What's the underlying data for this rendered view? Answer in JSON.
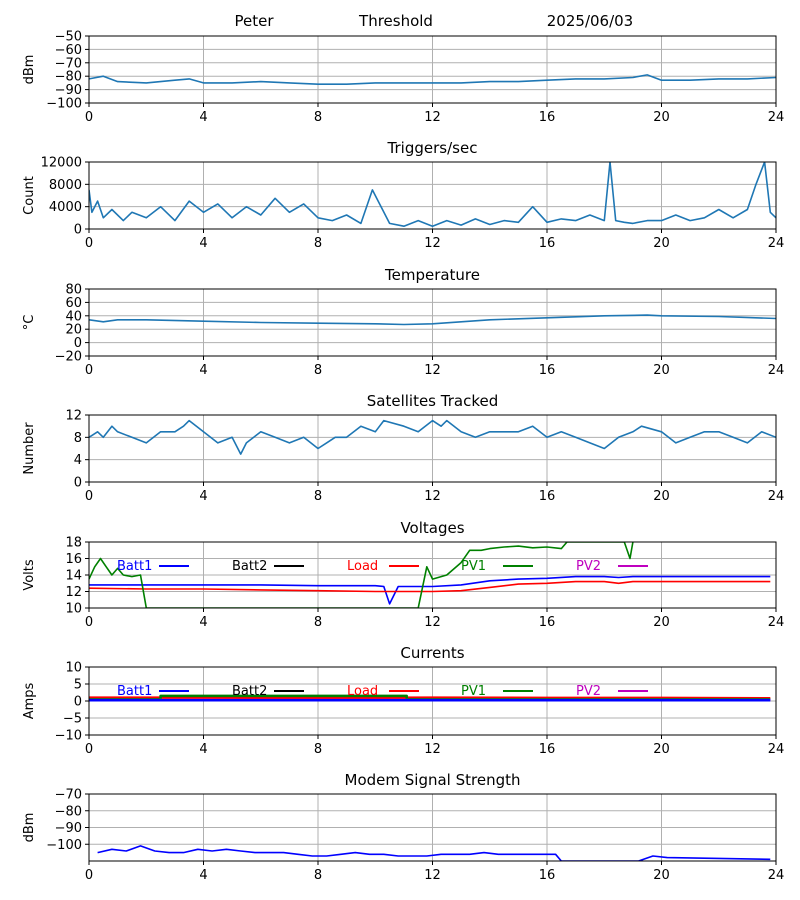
{
  "header": {
    "station": "Peter",
    "mode": "Threshold",
    "date": "2025/06/03"
  },
  "colors": {
    "default": "#1f77b4",
    "grid": "#b0b0b0",
    "batt1": "#0000ff",
    "batt2": "#000000",
    "load": "#ff0000",
    "pv1": "#008000",
    "pv2": "#bf00bf"
  },
  "chart_data": [
    {
      "type": "line",
      "title": "",
      "xlabel": "",
      "ylabel": "dBm",
      "xlim": [
        0,
        24
      ],
      "ylim": [
        -100,
        -50
      ],
      "grid": true,
      "x_ticks": [
        "0",
        "4",
        "8",
        "12",
        "16",
        "20",
        "24"
      ],
      "y_ticks": [
        "−100",
        "−90",
        "−80",
        "−70",
        "−60",
        "−50"
      ],
      "series": [
        {
          "x": [
            0,
            0.5,
            1,
            2,
            3,
            3.5,
            4,
            5,
            6,
            7,
            8,
            9,
            10,
            11,
            12,
            13,
            14,
            15,
            16,
            17,
            18,
            19,
            19.5,
            20,
            21,
            22,
            23,
            24
          ],
          "y": [
            -82,
            -80,
            -84,
            -85,
            -83,
            -82,
            -85,
            -85,
            -84,
            -85,
            -86,
            -86,
            -85,
            -85,
            -85,
            -85,
            -84,
            -84,
            -83,
            -82,
            -82,
            -81,
            -79,
            -83,
            -83,
            -82,
            -82,
            -81
          ]
        }
      ]
    },
    {
      "type": "line",
      "title": "Triggers/sec",
      "xlabel": "",
      "ylabel": "Count",
      "xlim": [
        0,
        24
      ],
      "ylim": [
        0,
        12000
      ],
      "grid": true,
      "x_ticks": [
        "0",
        "4",
        "8",
        "12",
        "16",
        "20",
        "24"
      ],
      "y_ticks": [
        "0",
        "4000",
        "8000",
        "12000"
      ],
      "series": [
        {
          "x": [
            0,
            0.1,
            0.3,
            0.5,
            0.8,
            1.2,
            1.5,
            2,
            2.5,
            3,
            3.5,
            4,
            4.5,
            5,
            5.5,
            6,
            6.5,
            7,
            7.5,
            8,
            8.5,
            9,
            9.5,
            9.9,
            10.5,
            11,
            11.5,
            12,
            12.5,
            13,
            13.5,
            14,
            14.5,
            15,
            15.5,
            16,
            16.5,
            17,
            17.5,
            18,
            18.2,
            18.4,
            18.7,
            19,
            19.5,
            20,
            20.5,
            21,
            21.5,
            22,
            22.5,
            23,
            23.3,
            23.6,
            23.8,
            24
          ],
          "y": [
            7000,
            3000,
            5000,
            2000,
            3500,
            1500,
            3000,
            2000,
            4000,
            1500,
            5000,
            3000,
            4500,
            2000,
            4000,
            2500,
            5500,
            3000,
            4500,
            2000,
            1500,
            2500,
            1000,
            7000,
            1000,
            500,
            1500,
            500,
            1500,
            700,
            1800,
            800,
            1500,
            1200,
            4000,
            1200,
            1800,
            1500,
            2500,
            1500,
            12000,
            1500,
            1200,
            1000,
            1500,
            1500,
            2500,
            1500,
            2000,
            3500,
            2000,
            3500,
            8000,
            12000,
            3000,
            2000
          ]
        }
      ]
    },
    {
      "type": "line",
      "title": "Temperature",
      "xlabel": "",
      "ylabel": "°C",
      "xlim": [
        0,
        24
      ],
      "ylim": [
        -20,
        80
      ],
      "grid": true,
      "x_ticks": [
        "0",
        "4",
        "8",
        "12",
        "16",
        "20",
        "24"
      ],
      "y_ticks": [
        "−20",
        "0",
        "20",
        "40",
        "60",
        "80"
      ],
      "series": [
        {
          "x": [
            0,
            0.5,
            1,
            2,
            4,
            6,
            8,
            10,
            11,
            12,
            13,
            14,
            16,
            18,
            19.5,
            20,
            22,
            24
          ],
          "y": [
            34,
            31,
            34,
            34,
            32,
            30,
            29,
            28,
            27,
            28,
            31,
            34,
            37,
            40,
            41,
            40,
            39,
            36
          ]
        }
      ]
    },
    {
      "type": "line",
      "title": "Satellites Tracked",
      "xlabel": "",
      "ylabel": "Number",
      "xlim": [
        0,
        24
      ],
      "ylim": [
        0,
        12
      ],
      "grid": true,
      "x_ticks": [
        "0",
        "4",
        "8",
        "12",
        "16",
        "20",
        "24"
      ],
      "y_ticks": [
        "0",
        "4",
        "8",
        "12"
      ],
      "series": [
        {
          "x": [
            0,
            0.3,
            0.5,
            0.8,
            1,
            1.5,
            2,
            2.5,
            3,
            3.3,
            3.5,
            4,
            4.5,
            5,
            5.3,
            5.5,
            6,
            6.5,
            7,
            7.5,
            8,
            8.3,
            8.6,
            9,
            9.5,
            10,
            10.3,
            11,
            11.5,
            12,
            12.3,
            12.5,
            13,
            13.5,
            14,
            15,
            15.5,
            16,
            16.5,
            17,
            17.5,
            18,
            18.5,
            19,
            19.3,
            20,
            20.5,
            21,
            21.5,
            22,
            22.5,
            23,
            23.5,
            24
          ],
          "y": [
            8,
            9,
            8,
            10,
            9,
            8,
            7,
            9,
            9,
            10,
            11,
            9,
            7,
            8,
            5,
            7,
            9,
            8,
            7,
            8,
            6,
            7,
            8,
            8,
            10,
            9,
            11,
            10,
            9,
            11,
            10,
            11,
            9,
            8,
            9,
            9,
            10,
            8,
            9,
            8,
            7,
            6,
            8,
            9,
            10,
            9,
            7,
            8,
            9,
            9,
            8,
            7,
            9,
            8
          ]
        }
      ]
    },
    {
      "type": "line",
      "title": "Voltages",
      "xlabel": "",
      "ylabel": "Volts",
      "xlim": [
        0,
        24
      ],
      "ylim": [
        10,
        18
      ],
      "grid": true,
      "x_ticks": [
        "0",
        "4",
        "8",
        "12",
        "16",
        "20",
        "24"
      ],
      "y_ticks": [
        "10",
        "12",
        "14",
        "16",
        "18"
      ],
      "legend": [
        "Batt1",
        "Batt2",
        "Load",
        "PV1",
        "PV2"
      ],
      "series": [
        {
          "name": "Batt1",
          "x": [
            0,
            2,
            4,
            6,
            8,
            10,
            10.3,
            10.5,
            10.8,
            12,
            13,
            14,
            15,
            16,
            17,
            18,
            18.5,
            19,
            20,
            23.8
          ],
          "y": [
            12.8,
            12.8,
            12.8,
            12.8,
            12.7,
            12.7,
            12.6,
            10.5,
            12.6,
            12.6,
            12.8,
            13.3,
            13.5,
            13.6,
            13.8,
            13.8,
            13.7,
            13.8,
            13.8,
            13.8
          ]
        },
        {
          "name": "Load",
          "x": [
            0,
            2,
            4,
            6,
            8,
            10,
            11,
            12,
            13,
            14,
            15,
            16,
            17,
            18,
            18.5,
            19,
            20,
            23.8
          ],
          "y": [
            12.4,
            12.3,
            12.3,
            12.2,
            12.1,
            12.0,
            12.0,
            12.0,
            12.1,
            12.5,
            12.9,
            13.0,
            13.2,
            13.2,
            13.0,
            13.2,
            13.2,
            13.2
          ]
        },
        {
          "name": "PV1",
          "x": [
            0,
            0.2,
            0.4,
            0.6,
            0.8,
            1,
            1.2,
            1.5,
            1.8,
            2.0,
            11.5,
            11.8,
            12,
            12.5,
            13,
            13.3,
            13.7,
            14,
            14.5,
            15,
            15.5,
            16,
            16.5,
            16.7,
            18.7,
            18.9,
            19
          ],
          "y": [
            13.5,
            15.0,
            16.0,
            15.0,
            14.0,
            14.8,
            14.0,
            13.8,
            14.0,
            10.0,
            10.0,
            15.0,
            13.5,
            14.0,
            15.5,
            17.0,
            17.0,
            17.2,
            17.4,
            17.5,
            17.3,
            17.4,
            17.2,
            18.0,
            18.0,
            16.0,
            18.0
          ]
        }
      ]
    },
    {
      "type": "line",
      "title": "Currents",
      "xlabel": "",
      "ylabel": "Amps",
      "xlim": [
        0,
        24
      ],
      "ylim": [
        -10,
        10
      ],
      "grid": true,
      "x_ticks": [
        "0",
        "4",
        "8",
        "12",
        "16",
        "20",
        "24"
      ],
      "y_ticks": [
        "−10",
        "−5",
        "0",
        "5",
        "10"
      ],
      "legend": [
        "Batt1",
        "Batt2",
        "Load",
        "PV1",
        "PV2"
      ],
      "series": [
        {
          "name": "Load",
          "x": [
            0,
            4,
            8,
            12,
            16,
            20,
            23.8
          ],
          "y": [
            1.0,
            1.0,
            0.9,
            1.0,
            0.9,
            0.9,
            0.8
          ]
        },
        {
          "name": "PV1",
          "x": [
            0,
            2.5,
            2.5,
            11.1,
            11.1,
            23.8
          ],
          "y": [
            0.5,
            0.5,
            1.5,
            1.5,
            0.5,
            0.5
          ]
        },
        {
          "name": "PV2",
          "x": [
            0,
            23.8
          ],
          "y": [
            0.3,
            0.3
          ]
        },
        {
          "name": "Batt1",
          "x": [
            0,
            23.8
          ],
          "y": [
            0.2,
            0.2
          ]
        }
      ]
    },
    {
      "type": "line",
      "title": "Modem Signal Strength",
      "xlabel": "",
      "ylabel": "dBm",
      "xlim": [
        0,
        24
      ],
      "ylim": [
        -110,
        -70
      ],
      "grid": true,
      "x_ticks": [
        "0",
        "4",
        "8",
        "12",
        "16",
        "20",
        "24"
      ],
      "y_ticks": [
        "−100",
        "−90",
        "−80",
        "−70"
      ],
      "series": [
        {
          "name": "",
          "x": [
            0.3,
            0.8,
            1.3,
            1.8,
            2.3,
            2.8,
            3.3,
            3.8,
            4.3,
            4.8,
            5.3,
            5.8,
            6.3,
            6.8,
            7.3,
            7.8,
            8.3,
            8.8,
            9.3,
            9.8,
            10.3,
            10.8,
            11.3,
            11.8,
            12.3,
            12.8,
            13.3,
            13.8,
            14.3,
            14.8,
            15.3,
            15.8,
            16.3,
            16.5,
            19.2,
            19.7,
            20.2,
            23.8
          ],
          "y": [
            -105,
            -103,
            -104,
            -101,
            -104,
            -105,
            -105,
            -103,
            -104,
            -103,
            -104,
            -105,
            -105,
            -105,
            -106,
            -107,
            -107,
            -106,
            -105,
            -106,
            -106,
            -107,
            -107,
            -107,
            -106,
            -106,
            -106,
            -105,
            -106,
            -106,
            -106,
            -106,
            -106,
            -110,
            -110,
            -107,
            -108,
            -109
          ]
        }
      ]
    }
  ]
}
